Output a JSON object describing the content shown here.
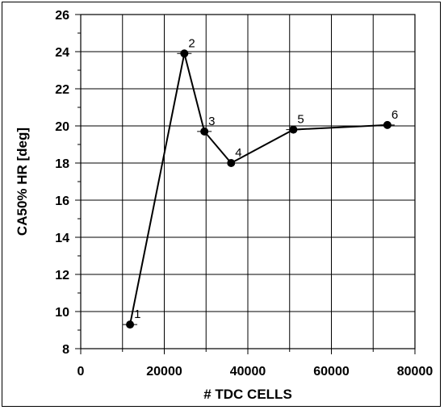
{
  "chart_data": {
    "type": "line",
    "title": "",
    "xlabel": "# TDC CELLS",
    "ylabel": "CA50% HR [deg]",
    "xlim": [
      0,
      80000
    ],
    "ylim": [
      8,
      26
    ],
    "x_ticks": [
      0,
      20000,
      40000,
      60000,
      80000
    ],
    "y_ticks": [
      8,
      10,
      12,
      14,
      16,
      18,
      20,
      22,
      24,
      26
    ],
    "x_minor_step": 10000,
    "y_minor_step": 1,
    "grid": true,
    "series": [
      {
        "points": [
          {
            "label": "1",
            "x": 11800,
            "y": 9.3
          },
          {
            "label": "2",
            "x": 24800,
            "y": 23.9
          },
          {
            "label": "3",
            "x": 29600,
            "y": 19.7
          },
          {
            "label": "4",
            "x": 36000,
            "y": 18.0
          },
          {
            "label": "5",
            "x": 50900,
            "y": 19.8
          },
          {
            "label": "6",
            "x": 73400,
            "y": 20.05
          }
        ]
      }
    ]
  }
}
